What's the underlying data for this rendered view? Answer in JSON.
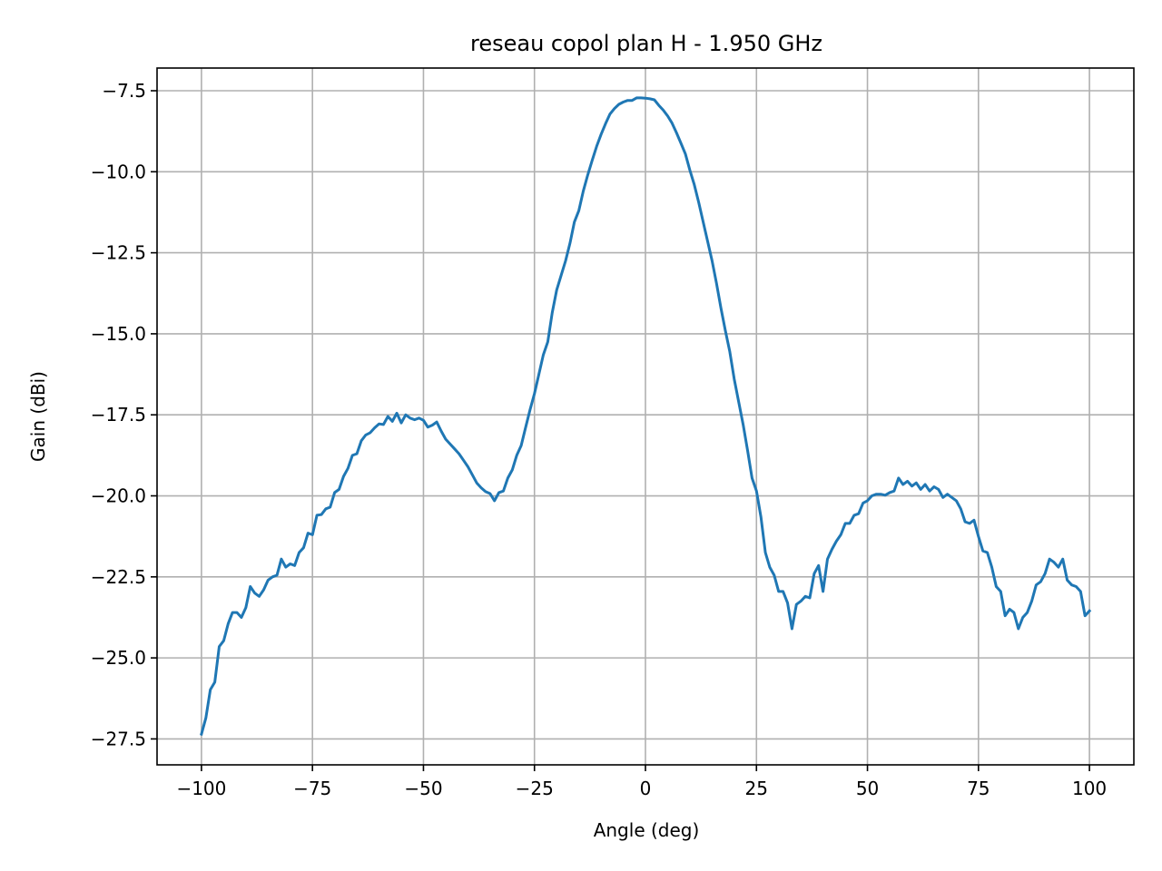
{
  "chart_data": {
    "type": "line",
    "title": "reseau copol plan H - 1.950 GHz",
    "xlabel": "Angle (deg)",
    "ylabel": "Gain (dBi)",
    "xlim": [
      -110,
      110
    ],
    "ylim": [
      -28.3,
      -6.8
    ],
    "xticks": [
      -100,
      -75,
      -50,
      -25,
      0,
      25,
      50,
      75,
      100
    ],
    "xtick_labels": [
      "−100",
      "−75",
      "−50",
      "−25",
      "0",
      "25",
      "50",
      "75",
      "100"
    ],
    "yticks": [
      -27.5,
      -25.0,
      -22.5,
      -20.0,
      -17.5,
      -15.0,
      -12.5,
      -10.0,
      -7.5
    ],
    "ytick_labels": [
      "−27.5",
      "−25.0",
      "−22.5",
      "−20.0",
      "−17.5",
      "−15.0",
      "−12.5",
      "−10.0",
      "−7.5"
    ],
    "grid": true,
    "line_color": "#1f77b4",
    "grid_color": "#b0b0b0",
    "series": [
      {
        "x": [
          -100,
          -99,
          -98,
          -97,
          -96,
          -95,
          -94,
          -93,
          -92,
          -91,
          -90,
          -89,
          -88,
          -87,
          -86,
          -85,
          -84,
          -83,
          -82,
          -81,
          -80,
          -79,
          -78,
          -77,
          -76,
          -75,
          -74,
          -73,
          -72,
          -71,
          -70,
          -69,
          -68,
          -67,
          -66,
          -65,
          -64,
          -63,
          -62,
          -61,
          -60,
          -59,
          -58,
          -57,
          -56,
          -55,
          -54,
          -53,
          -52,
          -51,
          -50,
          -49,
          -48,
          -47,
          -46,
          -45,
          -44,
          -43,
          -42,
          -41,
          -40,
          -39,
          -38,
          -37,
          -36,
          -35,
          -34,
          -33,
          -32,
          -31,
          -30,
          -29,
          -28,
          -27,
          -26,
          -25,
          -24,
          -23,
          -22,
          -21,
          -20,
          -19,
          -18,
          -17,
          -16,
          -15,
          -14,
          -13,
          -12,
          -11,
          -10,
          -9,
          -8,
          -7,
          -6,
          -5,
          -4,
          -3,
          -2,
          -1,
          0,
          1,
          2,
          3,
          4,
          5,
          6,
          7,
          8,
          9,
          10,
          11,
          12,
          13,
          14,
          15,
          16,
          17,
          18,
          19,
          20,
          21,
          22,
          23,
          24,
          25,
          26,
          27,
          28,
          29,
          30,
          31,
          32,
          33,
          34,
          35,
          36,
          37,
          38,
          39,
          40,
          41,
          42,
          43,
          44,
          45,
          46,
          47,
          48,
          49,
          50,
          51,
          52,
          53,
          54,
          55,
          56,
          57,
          58,
          59,
          60,
          61,
          62,
          63,
          64,
          65,
          66,
          67,
          68,
          69,
          70,
          71,
          72,
          73,
          74,
          75,
          76,
          77,
          78,
          79,
          80,
          81,
          82,
          83,
          84,
          85,
          86,
          87,
          88,
          89,
          90,
          91,
          92,
          93,
          94,
          95,
          96,
          97,
          98,
          99,
          100
        ],
        "y": [
          -27.35,
          -26.85,
          -25.98,
          -25.75,
          -24.65,
          -24.47,
          -23.95,
          -23.6,
          -23.6,
          -23.75,
          -23.45,
          -22.8,
          -23.0,
          -23.1,
          -22.9,
          -22.6,
          -22.5,
          -22.45,
          -21.95,
          -22.2,
          -22.1,
          -22.15,
          -21.75,
          -21.6,
          -21.15,
          -21.2,
          -20.6,
          -20.58,
          -20.4,
          -20.35,
          -19.9,
          -19.8,
          -19.4,
          -19.15,
          -18.75,
          -18.7,
          -18.3,
          -18.12,
          -18.05,
          -17.9,
          -17.78,
          -17.8,
          -17.55,
          -17.7,
          -17.45,
          -17.75,
          -17.5,
          -17.6,
          -17.65,
          -17.6,
          -17.67,
          -17.88,
          -17.82,
          -17.72,
          -18.0,
          -18.25,
          -18.4,
          -18.55,
          -18.7,
          -18.9,
          -19.1,
          -19.35,
          -19.6,
          -19.75,
          -19.87,
          -19.93,
          -20.15,
          -19.9,
          -19.85,
          -19.45,
          -19.2,
          -18.75,
          -18.45,
          -17.9,
          -17.35,
          -16.85,
          -16.25,
          -15.65,
          -15.25,
          -14.35,
          -13.65,
          -13.2,
          -12.75,
          -12.2,
          -11.55,
          -11.2,
          -10.6,
          -10.1,
          -9.65,
          -9.22,
          -8.85,
          -8.52,
          -8.22,
          -8.05,
          -7.92,
          -7.85,
          -7.8,
          -7.8,
          -7.72,
          -7.72,
          -7.73,
          -7.75,
          -7.78,
          -7.95,
          -8.1,
          -8.28,
          -8.5,
          -8.8,
          -9.12,
          -9.45,
          -9.95,
          -10.4,
          -10.95,
          -11.55,
          -12.15,
          -12.75,
          -13.45,
          -14.2,
          -14.9,
          -15.55,
          -16.4,
          -17.1,
          -17.8,
          -18.6,
          -19.45,
          -19.85,
          -20.65,
          -21.75,
          -22.2,
          -22.45,
          -22.95,
          -22.95,
          -23.3,
          -24.1,
          -23.35,
          -23.25,
          -23.1,
          -23.15,
          -22.4,
          -22.15,
          -22.95,
          -21.95,
          -21.65,
          -21.4,
          -21.2,
          -20.85,
          -20.85,
          -20.6,
          -20.55,
          -20.22,
          -20.15,
          -20.0,
          -19.95,
          -19.95,
          -19.98,
          -19.9,
          -19.85,
          -19.45,
          -19.65,
          -19.55,
          -19.7,
          -19.6,
          -19.8,
          -19.65,
          -19.85,
          -19.72,
          -19.8,
          -20.05,
          -19.95,
          -20.05,
          -20.15,
          -20.4,
          -20.8,
          -20.85,
          -20.75,
          -21.25,
          -21.7,
          -21.75,
          -22.2,
          -22.8,
          -22.95,
          -23.7,
          -23.5,
          -23.6,
          -24.1,
          -23.75,
          -23.6,
          -23.25,
          -22.75,
          -22.65,
          -22.4,
          -21.95,
          -22.05,
          -22.2,
          -21.95,
          -22.6,
          -22.75,
          -22.8,
          -22.95,
          -23.7,
          -23.55
        ]
      }
    ]
  }
}
